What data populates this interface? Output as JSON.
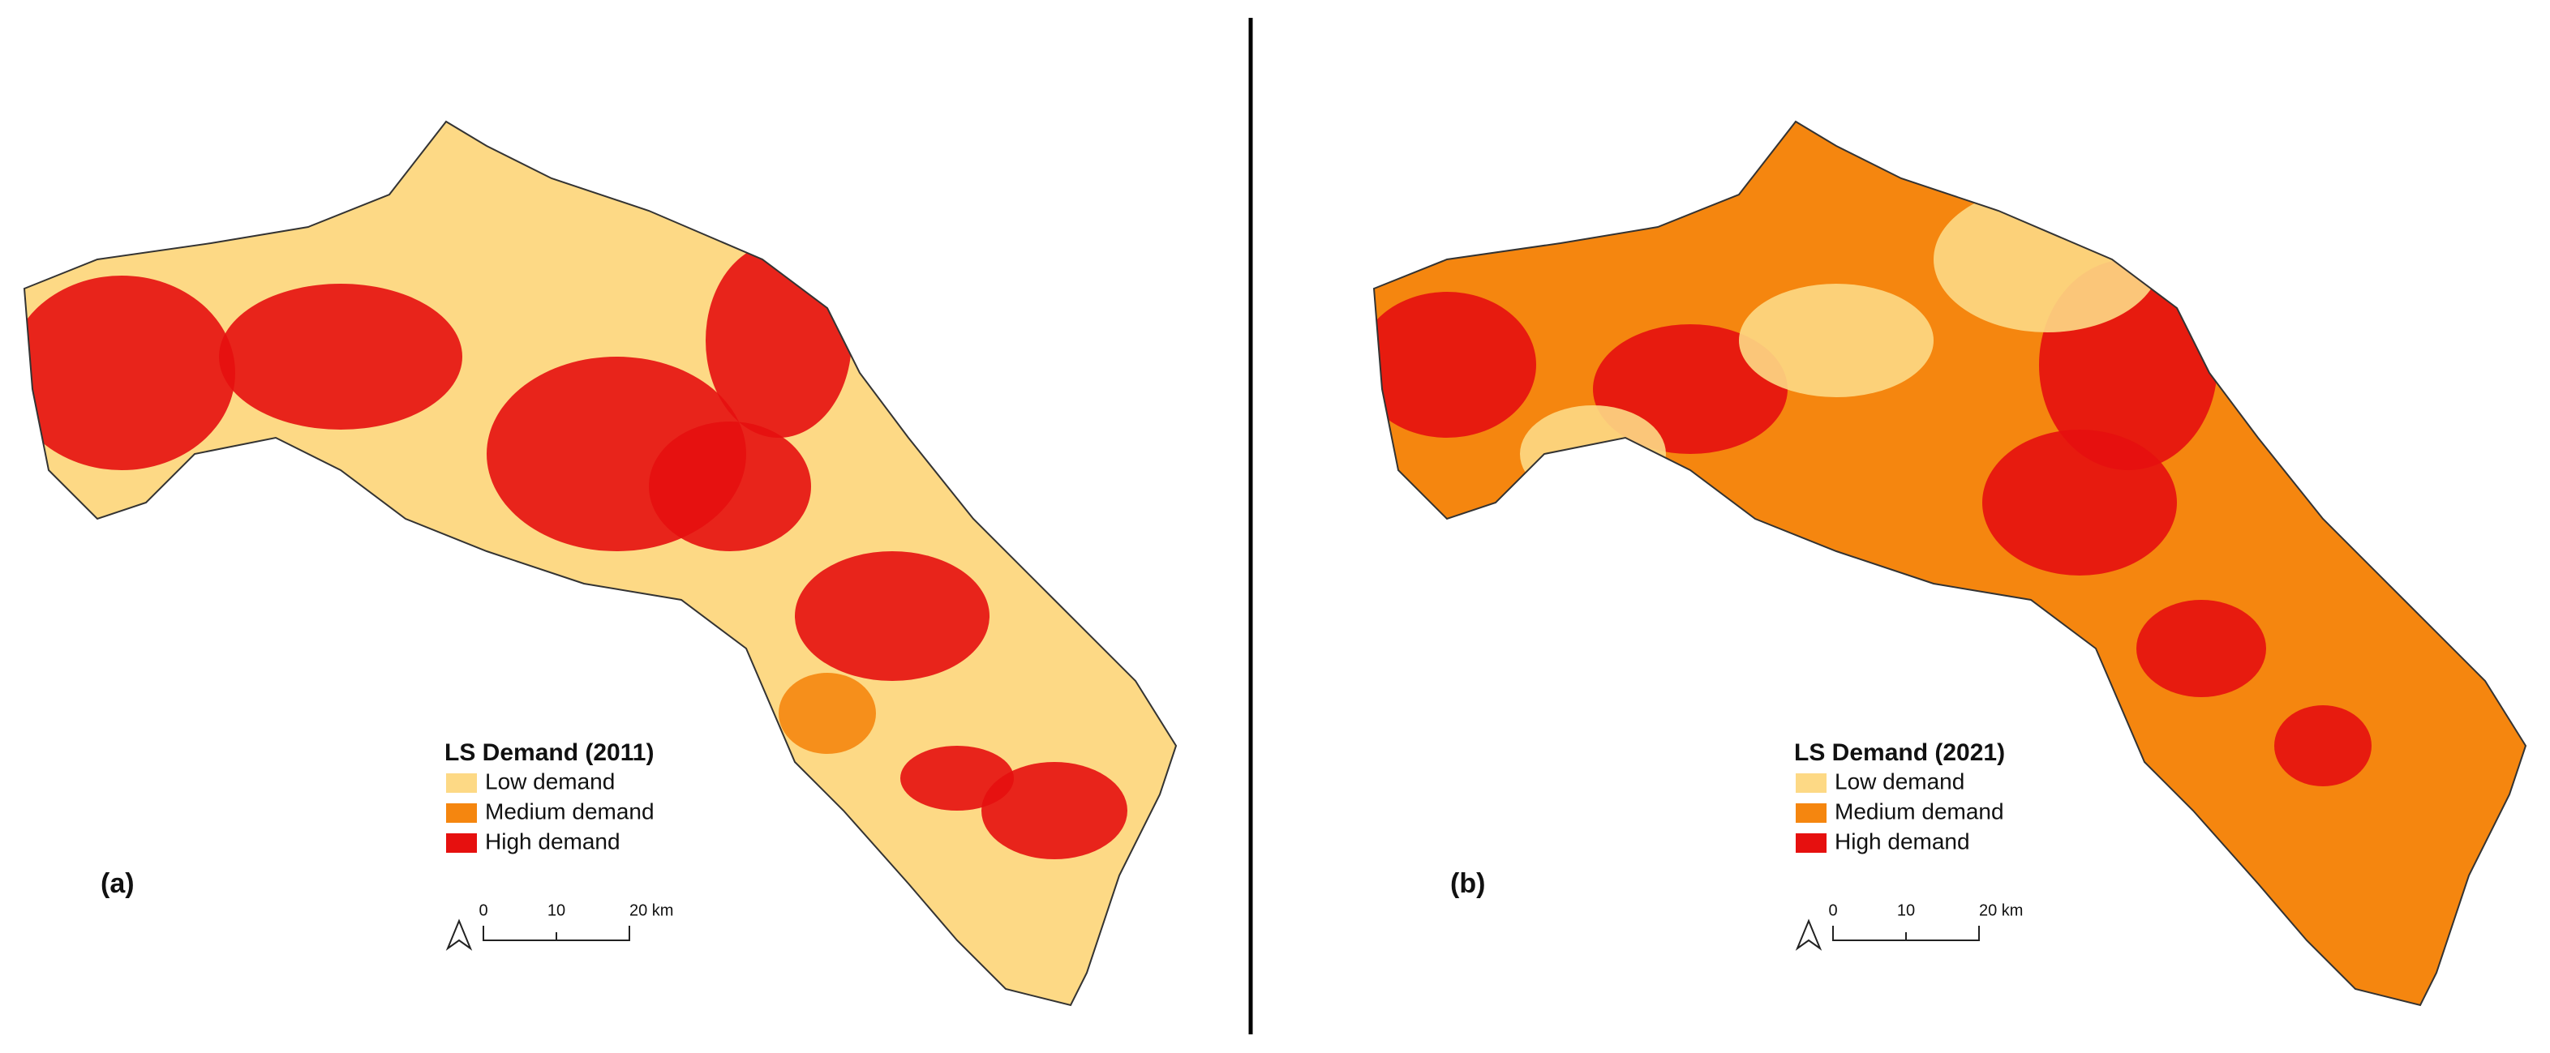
{
  "panels": [
    {
      "label": "(a)",
      "legend": {
        "title": "LS Demand (2011)",
        "items": [
          {
            "label": "Low demand",
            "color": "#fdd985"
          },
          {
            "label": "Medium demand",
            "color": "#f5860f"
          },
          {
            "label": "High demand",
            "color": "#e6100f"
          }
        ]
      },
      "scale": [
        "0",
        "10",
        "20 km"
      ]
    },
    {
      "label": "(b)",
      "legend": {
        "title": "LS Demand (2021)",
        "items": [
          {
            "label": "Low demand",
            "color": "#fdd985"
          },
          {
            "label": "Medium demand",
            "color": "#f5860f"
          },
          {
            "label": "High demand",
            "color": "#e6100f"
          }
        ]
      },
      "scale": [
        "0",
        "10",
        "20 km"
      ]
    }
  ]
}
